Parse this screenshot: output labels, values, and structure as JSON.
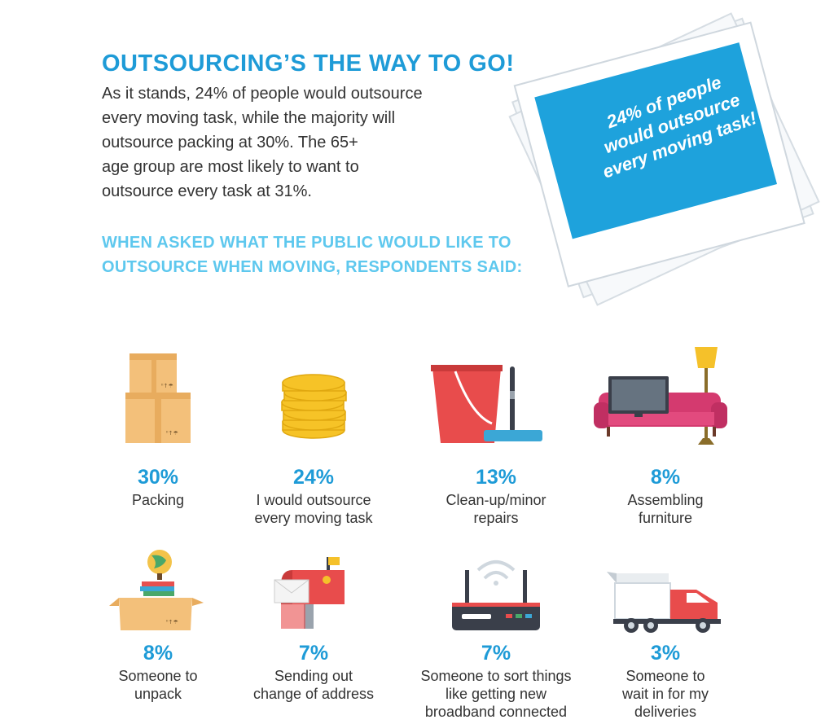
{
  "header": {
    "title": "OUTSOURCING’S THE WAY TO GO!",
    "intro_lines": [
      "As it stands, 24% of people would outsource",
      "every moving task, while the majority will",
      "outsource packing at 30%. The 65+",
      "age group are most likely to want to",
      "outsource every task at 31%."
    ],
    "subheading_lines": [
      "WHEN ASKED WHAT THE PUBLIC WOULD LIKE TO",
      "OUTSOURCE WHEN MOVING, RESPONDENTS SAID:"
    ]
  },
  "polaroid": {
    "lines": [
      "24% of people",
      "would outsource",
      "every moving task!"
    ]
  },
  "stats": [
    {
      "percent": "30%",
      "label_lines": [
        "Packing"
      ],
      "icon": "stacked-boxes-icon"
    },
    {
      "percent": "24%",
      "label_lines": [
        "I would outsource",
        "every moving task"
      ],
      "icon": "coin-stack-icon"
    },
    {
      "percent": "13%",
      "label_lines": [
        "Clean-up/minor",
        "repairs"
      ],
      "icon": "bucket-mop-icon"
    },
    {
      "percent": "8%",
      "label_lines": [
        "Assembling",
        "furniture"
      ],
      "icon": "sofa-tv-lamp-icon"
    },
    {
      "percent": "8%",
      "label_lines": [
        "Someone to",
        "unpack"
      ],
      "icon": "open-box-globe-icon"
    },
    {
      "percent": "7%",
      "label_lines": [
        "Sending out",
        "change of address"
      ],
      "icon": "mailbox-icon"
    },
    {
      "percent": "7%",
      "label_lines": [
        "Someone to sort things",
        "like getting new",
        "broadband connected"
      ],
      "icon": "wifi-router-icon"
    },
    {
      "percent": "3%",
      "label_lines": [
        "Someone to",
        "wait in for my",
        "deliveries"
      ],
      "icon": "delivery-truck-icon"
    }
  ],
  "colors": {
    "title_blue": "#1e9bd7",
    "subhead_blue": "#5ec8ee",
    "body_text": "#333333",
    "polaroid_blue": "#1ea2dc"
  }
}
